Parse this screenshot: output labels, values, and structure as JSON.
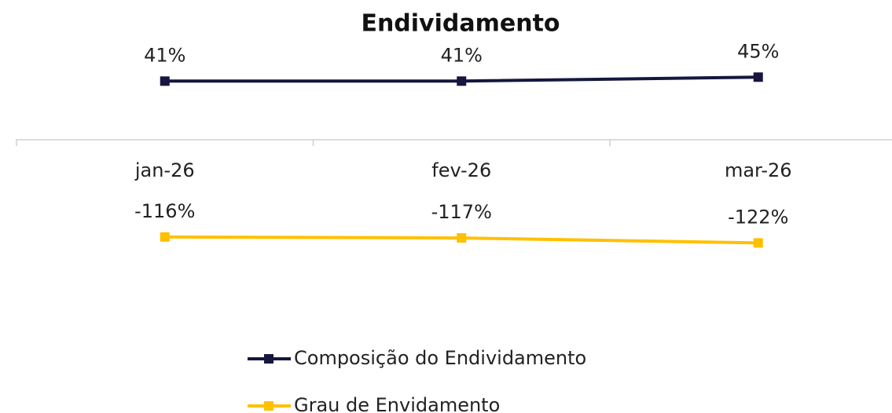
{
  "chart_data": {
    "type": "line",
    "title": "Endividamento",
    "categories": [
      "jan-26",
      "fev-26",
      "mar-26"
    ],
    "series": [
      {
        "name": "Composição do Endividamento",
        "color": "#15173f",
        "values": [
          41,
          41,
          45
        ],
        "value_labels": [
          "41%",
          "41%",
          "45%"
        ]
      },
      {
        "name": "Grau de Envidamento",
        "color": "#ffc000",
        "values": [
          -116,
          -117,
          -122
        ],
        "value_labels": [
          "-116%",
          "-117%",
          "-122%"
        ]
      }
    ],
    "ylim": [
      -200,
      80
    ]
  }
}
